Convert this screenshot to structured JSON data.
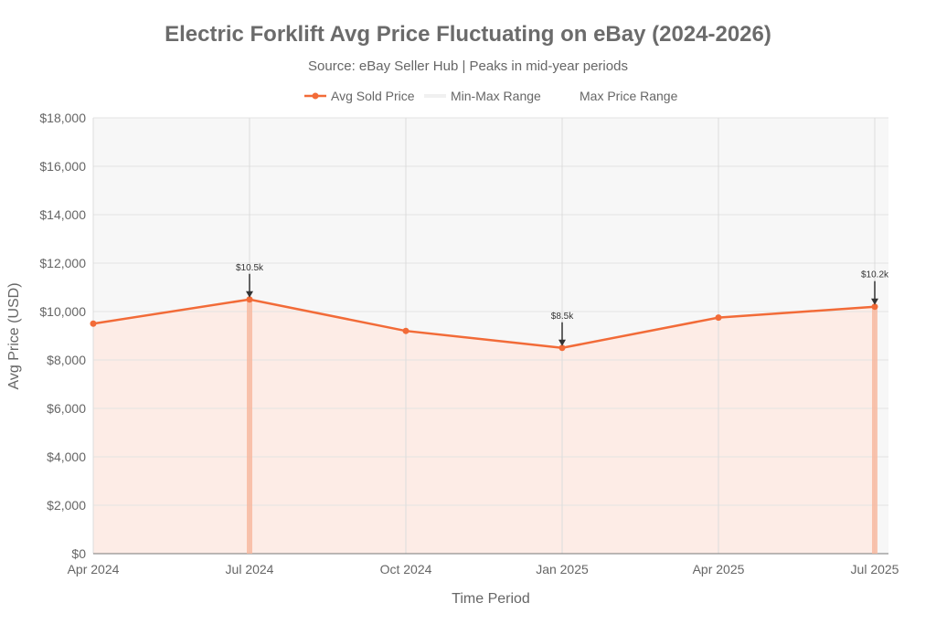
{
  "chart_data": {
    "type": "line",
    "title": "Electric Forklift Avg Price Fluctuating on eBay (2024-2026)",
    "subtitle": "Source: eBay Seller Hub | Peaks in mid-year periods",
    "xlabel": "Time Period",
    "ylabel": "Avg Price (USD)",
    "categories": [
      "Apr 2024",
      "Jul 2024",
      "Oct 2024",
      "Jan 2025",
      "Apr 2025",
      "Jul 2025"
    ],
    "series": [
      {
        "name": "Avg Sold Price",
        "values": [
          9500,
          10500,
          9200,
          8500,
          9750,
          10200
        ],
        "color": "#f26b38"
      }
    ],
    "legend": [
      "Avg Sold Price",
      "Min-Max Range",
      "Max Price Range"
    ],
    "legend_placement": "top",
    "max_price_range_bars": [
      "Jul 2024",
      "Jul 2025"
    ],
    "annotations": [
      {
        "x": "Jul 2024",
        "y": 10500,
        "text": "$10.5k"
      },
      {
        "x": "Jan 2025",
        "y": 8500,
        "text": "$8.5k"
      },
      {
        "x": "Jul 2025",
        "y": 10200,
        "text": "$10.2k"
      }
    ],
    "ylim": [
      0,
      18000
    ],
    "yticks": [
      0,
      2000,
      4000,
      6000,
      8000,
      10000,
      12000,
      14000,
      16000,
      18000
    ],
    "ytick_labels": [
      "$0",
      "$2,000",
      "$4,000",
      "$6,000",
      "$8,000",
      "$10,000",
      "$12,000",
      "$14,000",
      "$16,000",
      "$18,000"
    ],
    "grid": true,
    "colors": {
      "range_fill": "#f7f7f7",
      "area_fill": "#fdece6",
      "bar": "#f7b79c"
    }
  }
}
